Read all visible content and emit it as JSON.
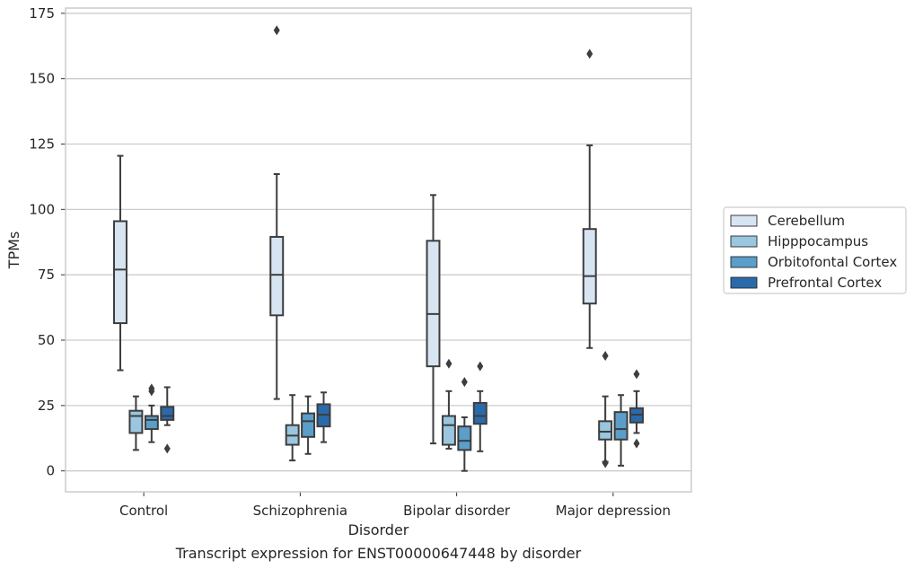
{
  "chart_data": {
    "type": "boxplot",
    "categories": [
      "Control",
      "Schizophrenia",
      "Bipolar disorder",
      "Major depression"
    ],
    "xlabel": "Disorder",
    "ylabel": "TPMs",
    "caption": "Transcript expression for ENST00000647448 by disorder",
    "ylim": [
      -8,
      177
    ],
    "yticks": [
      0,
      25,
      50,
      75,
      100,
      125,
      150,
      175
    ],
    "grid": "horizontal",
    "legend_position": "right",
    "series": [
      {
        "name": "Cerebellum",
        "color": "#d7e5f3",
        "boxes": [
          {
            "whisker_low": 38.5,
            "q1": 56.5,
            "median": 77,
            "q3": 95.5,
            "whisker_high": 120.5,
            "outliers": []
          },
          {
            "whisker_low": 27.5,
            "q1": 59.5,
            "median": 75,
            "q3": 89.5,
            "whisker_high": 113.5,
            "outliers": [
              168.5
            ]
          },
          {
            "whisker_low": 10.5,
            "q1": 40,
            "median": 60,
            "q3": 88,
            "whisker_high": 105.5,
            "outliers": []
          },
          {
            "whisker_low": 47,
            "q1": 64,
            "median": 74.5,
            "q3": 92.5,
            "whisker_high": 124.5,
            "outliers": [
              159.5
            ]
          }
        ]
      },
      {
        "name": "Hipppocampus",
        "color": "#9ac6df",
        "boxes": [
          {
            "whisker_low": 8,
            "q1": 14.5,
            "median": 21,
            "q3": 23,
            "whisker_high": 28.5,
            "outliers": []
          },
          {
            "whisker_low": 4,
            "q1": 10,
            "median": 13.5,
            "q3": 17.5,
            "whisker_high": 29,
            "outliers": []
          },
          {
            "whisker_low": 8.5,
            "q1": 10,
            "median": 17.5,
            "q3": 21,
            "whisker_high": 30.5,
            "outliers": [
              41
            ]
          },
          {
            "whisker_low": 3.5,
            "q1": 12,
            "median": 15,
            "q3": 19,
            "whisker_high": 28.5,
            "outliers": [
              3,
              44
            ]
          }
        ]
      },
      {
        "name": "Orbitofontal Cortex",
        "color": "#5a9ec9",
        "boxes": [
          {
            "whisker_low": 11,
            "q1": 16,
            "median": 19.5,
            "q3": 21,
            "whisker_high": 25,
            "outliers": [
              30.5,
              31.5
            ]
          },
          {
            "whisker_low": 6.5,
            "q1": 13,
            "median": 19,
            "q3": 22,
            "whisker_high": 28.5,
            "outliers": []
          },
          {
            "whisker_low": 0,
            "q1": 8,
            "median": 11.5,
            "q3": 17,
            "whisker_high": 20.5,
            "outliers": [
              34
            ]
          },
          {
            "whisker_low": 2,
            "q1": 12,
            "median": 16,
            "q3": 22.5,
            "whisker_high": 29,
            "outliers": []
          }
        ]
      },
      {
        "name": "Prefrontal Cortex",
        "color": "#2a6aab",
        "boxes": [
          {
            "whisker_low": 17.5,
            "q1": 19.5,
            "median": 21,
            "q3": 24.5,
            "whisker_high": 32,
            "outliers": [
              8.5
            ]
          },
          {
            "whisker_low": 11,
            "q1": 17,
            "median": 21.5,
            "q3": 25.5,
            "whisker_high": 30,
            "outliers": []
          },
          {
            "whisker_low": 7.5,
            "q1": 18,
            "median": 21,
            "q3": 26,
            "whisker_high": 30.5,
            "outliers": [
              40
            ]
          },
          {
            "whisker_low": 14.5,
            "q1": 18.5,
            "median": 21.5,
            "q3": 24,
            "whisker_high": 30.5,
            "outliers": [
              10.5,
              37
            ]
          }
        ]
      }
    ]
  }
}
